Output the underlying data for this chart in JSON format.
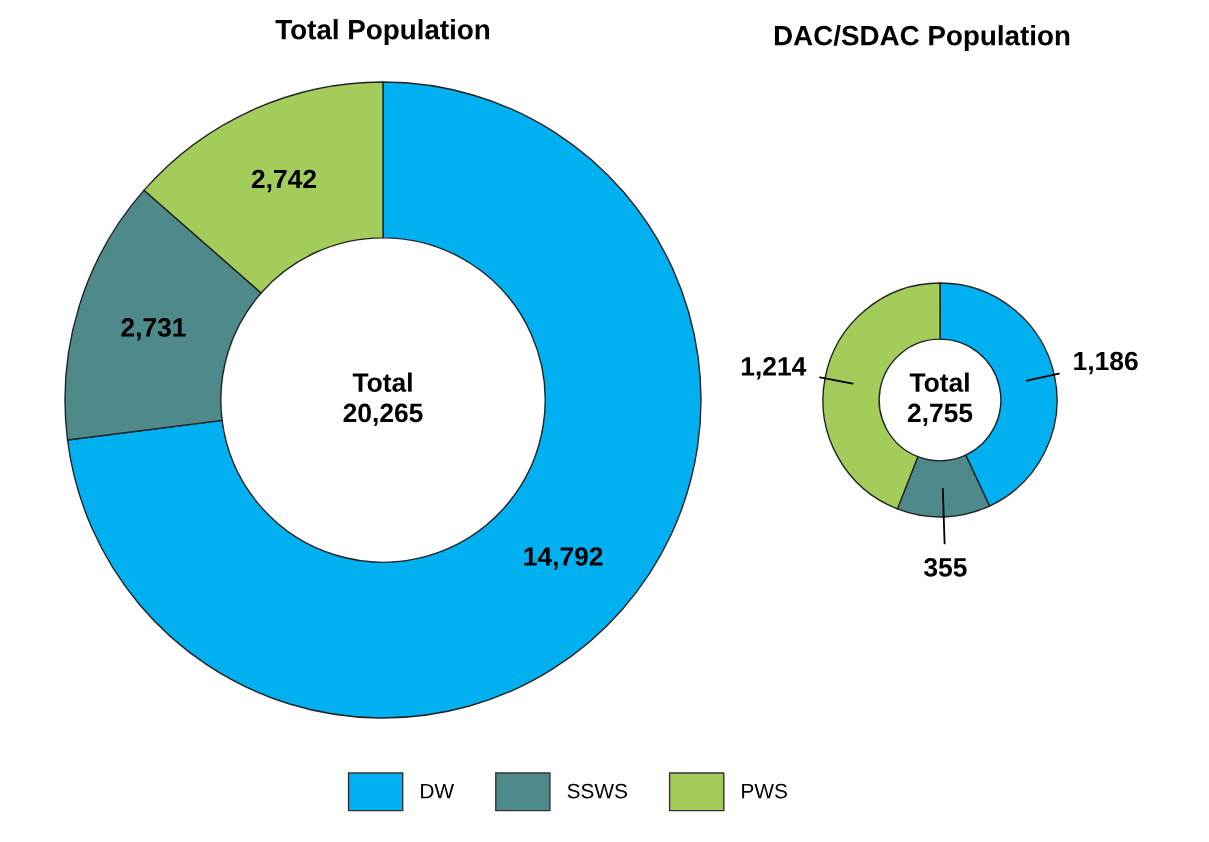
{
  "chart_data": [
    {
      "type": "donut",
      "title": "Total Population",
      "categories": [
        "DW",
        "SSWS",
        "PWS"
      ],
      "values": [
        14792,
        2731,
        2742
      ],
      "colors": [
        "#00b0f0",
        "#4e8a8a",
        "#a3cc5a"
      ],
      "data_labels": true,
      "value_labels": [
        "14,792",
        "2,731",
        "2,742"
      ],
      "annotations": [
        "Total\n20,265"
      ],
      "legend": "bottom"
    },
    {
      "type": "donut",
      "title": "DAC/SDAC Population",
      "categories": [
        null,
        null,
        null
      ],
      "values": [
        1186,
        355,
        1214
      ],
      "colors": [
        "#00b0f0",
        "#4e8a8a",
        "#a3cc5a"
      ],
      "data_labels": true,
      "value_labels": [
        "1,186",
        "355",
        "1,214"
      ],
      "annotations": [
        "Total\n2,755"
      ]
    }
  ]
}
